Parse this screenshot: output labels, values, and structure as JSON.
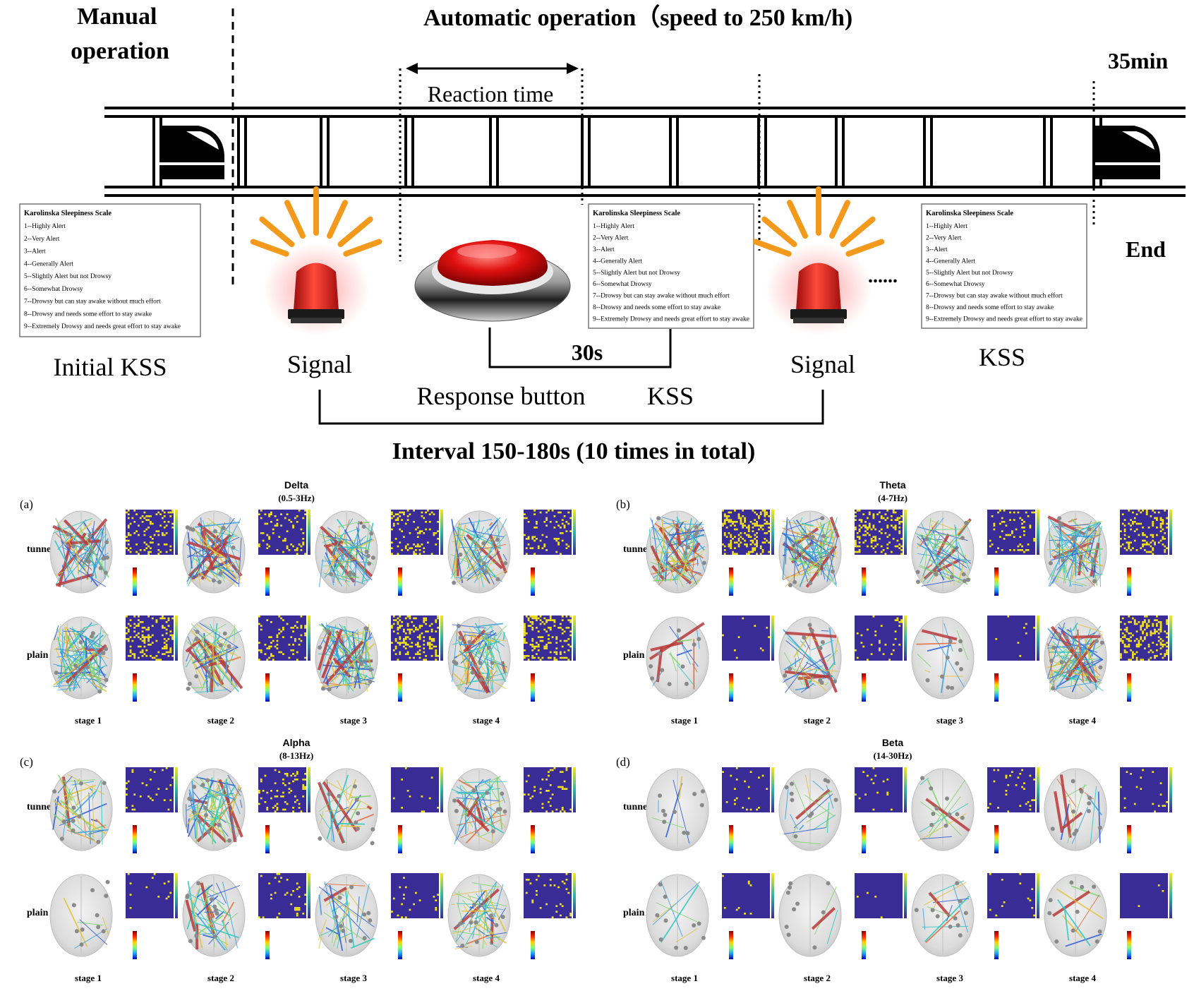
{
  "protocol": {
    "manual_label": "Manual operation",
    "manual_lines": [
      "Manual",
      "operation"
    ],
    "automatic_label": "Automatic  operation（speed to 250 km/h)",
    "duration_label": "35min",
    "end_label": "End",
    "reaction_time_label": "Reaction time",
    "initial_kss_label": "Initial KSS",
    "signal_label": "Signal",
    "response_button_label": "Response button",
    "kss_label": "KSS",
    "thirty_seconds_label": "30s",
    "ellipsis": "......",
    "interval_label": "Interval 150-180s (10 times in total)"
  },
  "kss_scale": {
    "title": "Karolinska Sleepiness Scale",
    "items": [
      "1--Highly Alert",
      "2--Very Alert",
      "3--Alert",
      "4--Generally Alert",
      "5--Slightly Alert but not Drowsy",
      "6--Somewhat Drowsy",
      "7--Drowsy but can stay awake without much effort",
      "8--Drowsy and needs some effort to stay awake",
      "9--Extremely Drowsy and needs great effort to stay awake"
    ]
  },
  "colors": {
    "track": "#000000",
    "matrix_bg": "#3a2c96",
    "matrix_dot": "#f2e21a",
    "signal_red": "#e31b1b",
    "ray_orange": "#f39a1c"
  },
  "connectivity": {
    "row_labels": [
      "tunnel",
      "plain"
    ],
    "stage_labels": [
      "stage 1",
      "stage 2",
      "stage 3",
      "stage 4"
    ],
    "panels": [
      {
        "id": "(a)",
        "band": "Delta",
        "range": "(0.5-3Hz)"
      },
      {
        "id": "(b)",
        "band": "Theta",
        "range": "(4-7Hz)"
      },
      {
        "id": "(c)",
        "band": "Alpha",
        "range": "(8-13Hz)"
      },
      {
        "id": "(d)",
        "band": "Beta",
        "range": "(14-30Hz)"
      }
    ]
  }
}
